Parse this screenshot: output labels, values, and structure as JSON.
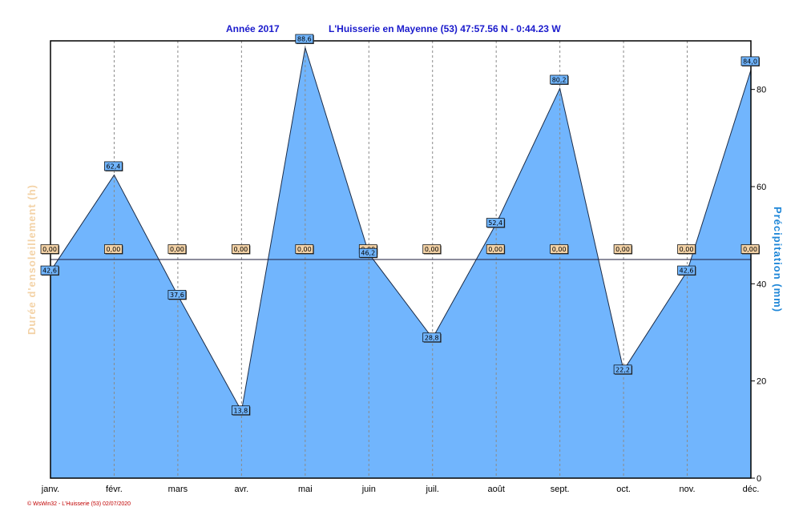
{
  "chart_data": {
    "type": "area",
    "title_left": "Année  2017",
    "title_right": "L'Huisserie en Mayenne (53) 47:57.56 N - 0:44.23 W",
    "ylabel_left": "Durée d'ensoleillement  (h)",
    "ylabel_right": "Précipitation  (mm)",
    "categories": [
      "janv.",
      "févr.",
      "mars",
      "avr.",
      "mai",
      "juin",
      "juil.",
      "août",
      "sept.",
      "oct.",
      "nov.",
      "déc."
    ],
    "right_axis": {
      "ylim": [
        0,
        90
      ],
      "ticks": [
        "0",
        "20",
        "40",
        "60",
        "80"
      ]
    },
    "series": [
      {
        "axis": "right",
        "color": "#71b5fd",
        "values": [
          42.6,
          62.4,
          37.6,
          13.8,
          88.6,
          46.2,
          28.8,
          52.4,
          80.2,
          22.2,
          42.6,
          84.0
        ],
        "labels": [
          "42,6",
          "62,4",
          "37,6",
          "13,8",
          "88,6",
          "46,2",
          "28,8",
          "52,4",
          "80,2",
          "22,2",
          "42,6",
          "84,0"
        ]
      },
      {
        "axis": "left",
        "color": "#f3d2a6",
        "values": [
          0,
          0,
          0,
          0,
          0,
          0,
          0,
          0,
          0,
          0,
          0,
          0
        ],
        "labels": [
          "0,00",
          "0,00",
          "0,00",
          "0,00",
          "0,00",
          "0,00",
          "0,00",
          "0,00",
          "0,00",
          "0,00",
          "0,00",
          "0,00"
        ]
      }
    ],
    "grid": "vertical-dashed"
  },
  "footer": "© WsWin32 - L'Huisserie (53)  02/07/2020"
}
